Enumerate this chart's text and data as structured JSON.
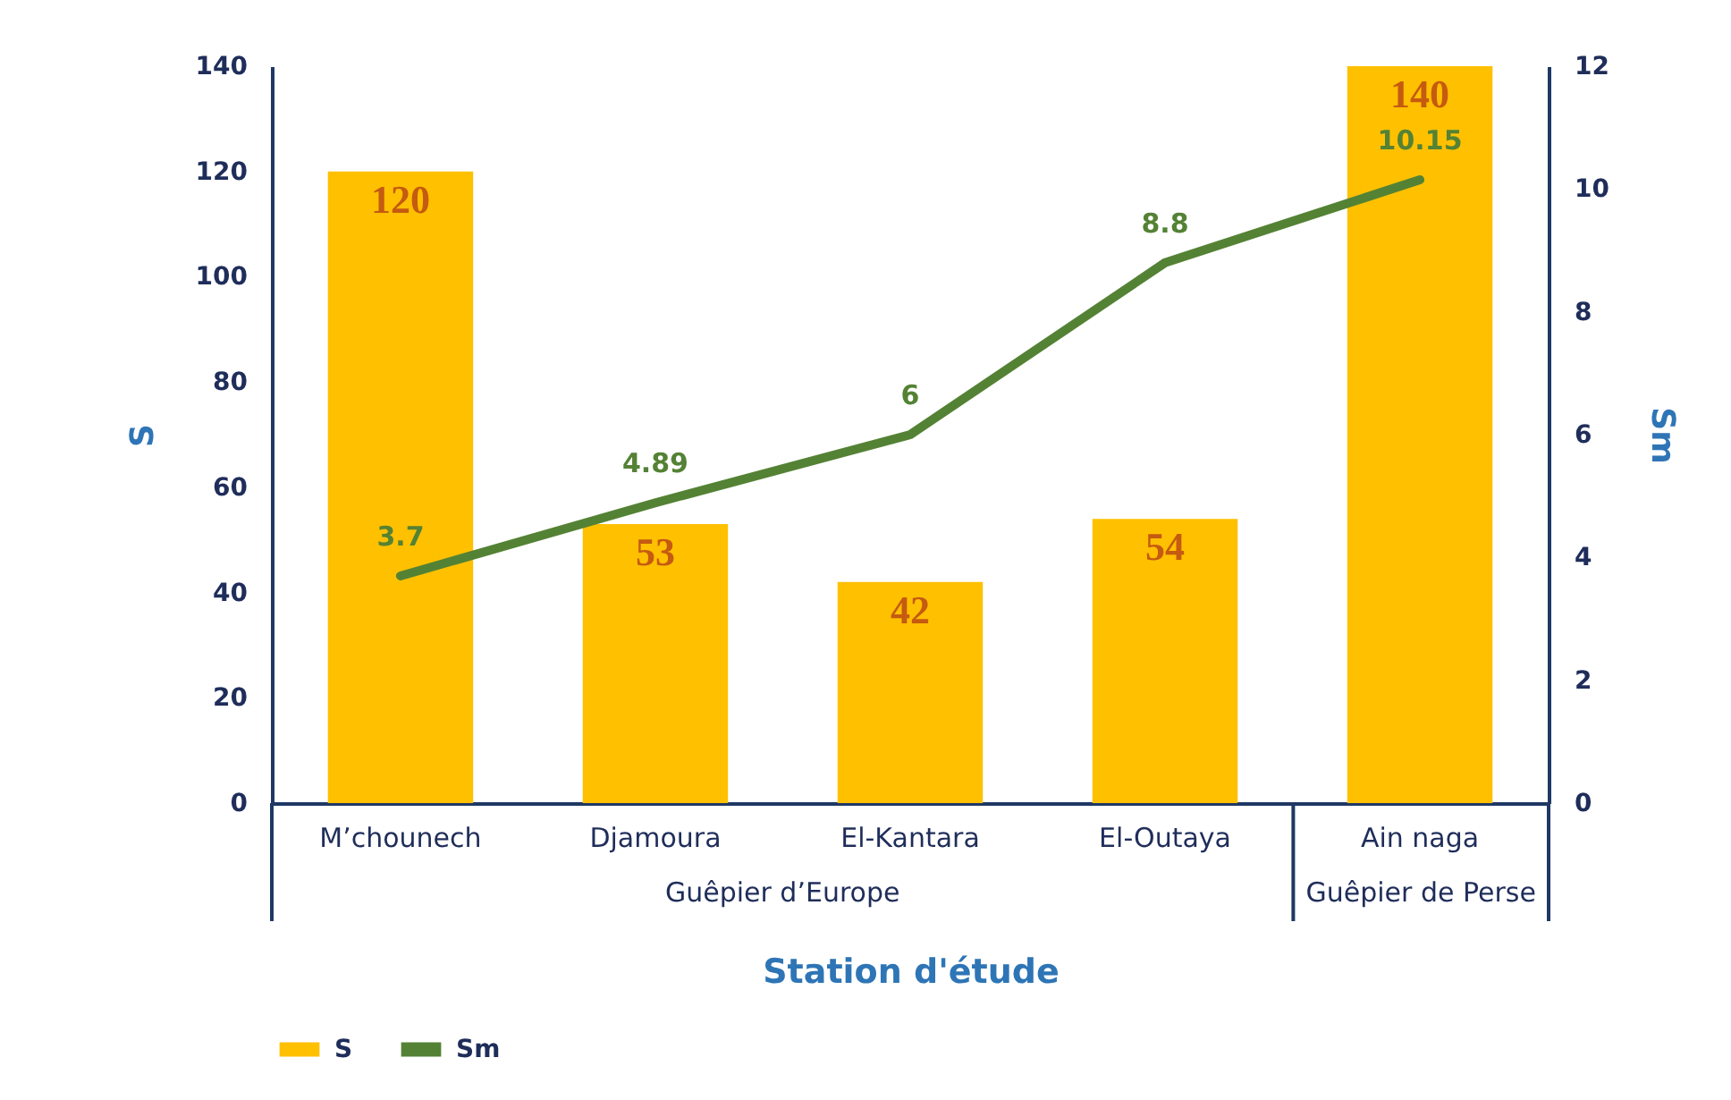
{
  "chart_data": {
    "type": "bar",
    "categories": [
      "M’chounech",
      "Djamoura",
      "El-Kantara",
      "El-Outaya",
      "Ain naga"
    ],
    "series": [
      {
        "name": "S",
        "color": "#ffc000",
        "values": [
          120,
          53,
          42,
          54,
          140
        ]
      },
      {
        "name": "Sm",
        "type": "line",
        "axis": "y2",
        "color": "#548235",
        "values": [
          3.7,
          4.89,
          6,
          8.8,
          10.15
        ]
      }
    ],
    "xlabel": "Station d'étude",
    "ylabel": "S",
    "y2label": "Sm",
    "ylim": [
      0,
      140
    ],
    "yticks": [
      0,
      20,
      40,
      60,
      80,
      100,
      120,
      140
    ],
    "y2lim": [
      0,
      12
    ],
    "y2ticks": [
      0,
      2,
      4,
      6,
      8,
      10,
      12
    ],
    "annotations": [
      "Guêpier d’Europe",
      "Guêpier de Perse"
    ],
    "data_labels": true,
    "grid": false,
    "legend": "bottom",
    "marker": "none",
    "line_style": "solid"
  }
}
